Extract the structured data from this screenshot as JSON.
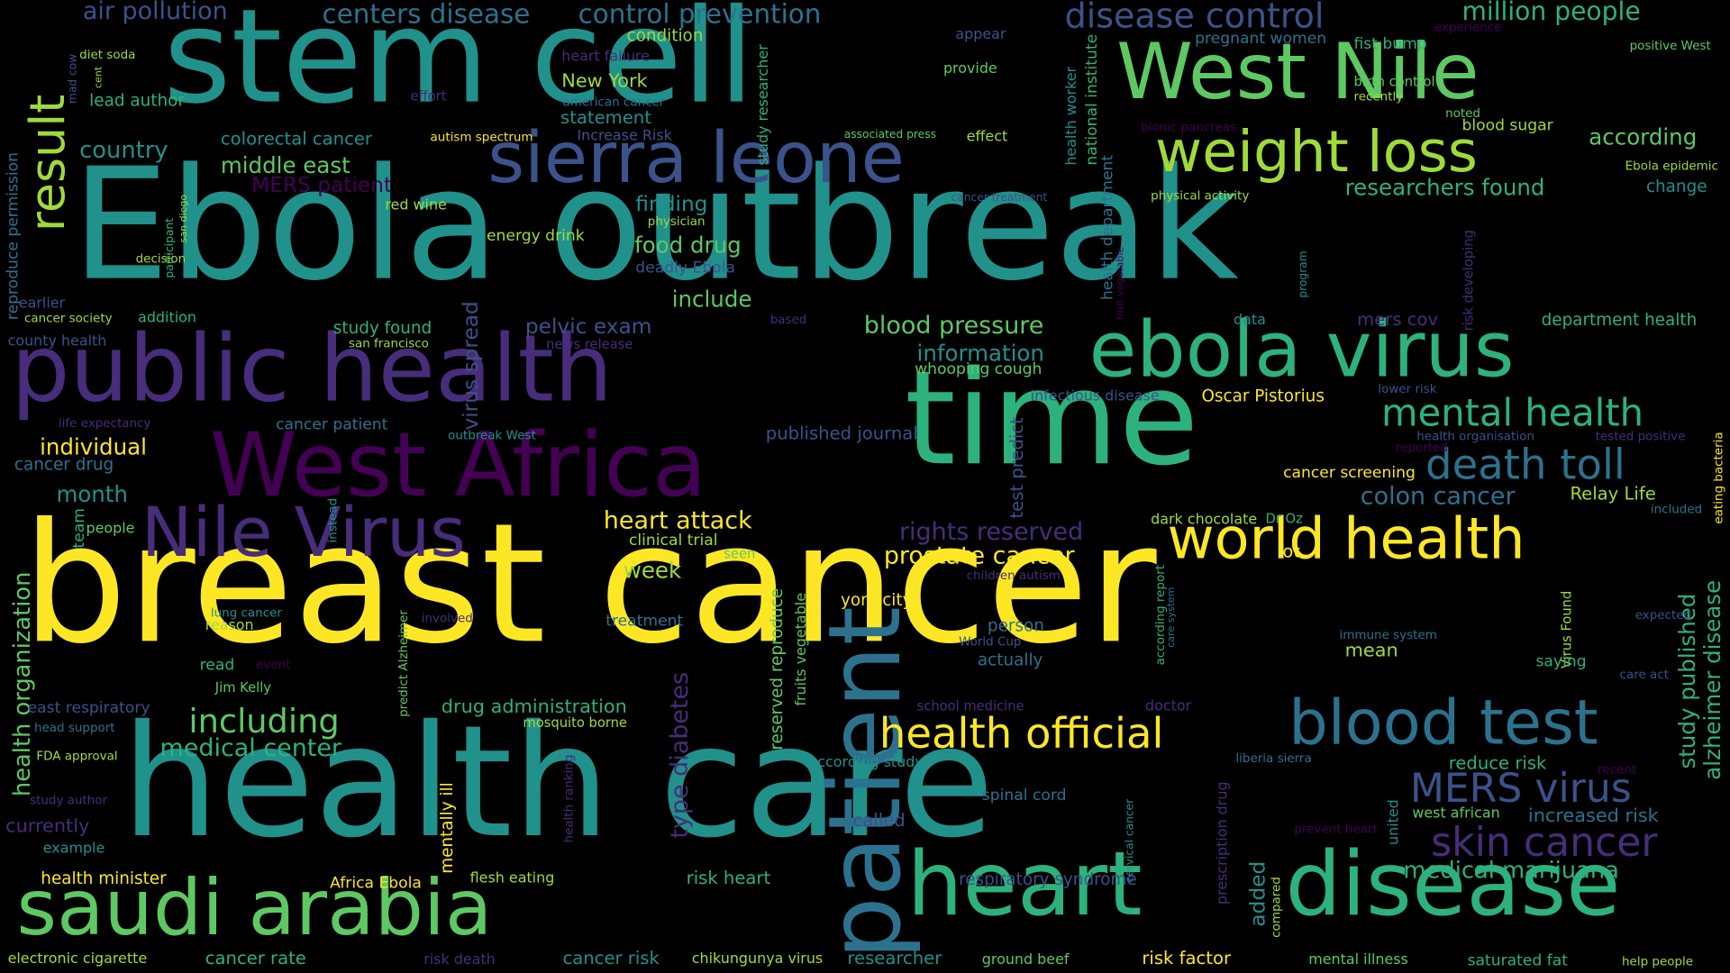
{
  "palette": {
    "background": "#000000",
    "yellow": "#fde725",
    "light_green": "#a0da39",
    "green": "#5ec962",
    "teal_green": "#2db27d",
    "teal": "#21918c",
    "blue_teal": "#2c728e",
    "blue": "#3b528b",
    "indigo": "#472d7b",
    "purple": "#440154"
  },
  "words": [
    "Ebola outbreak",
    "breast cancer",
    "health care",
    "stem cell",
    "public health",
    "time",
    "West Nile",
    "ebola virus",
    "West Africa",
    "patient",
    "heart",
    "disease",
    "saudi arabia",
    "sierra leone",
    "Nile Virus",
    "weight loss",
    "world health",
    "blood test",
    "health official",
    "mental health",
    "death toll",
    "MERS virus",
    "skin cancer",
    "result",
    "air pollution",
    "centers disease",
    "control prevention",
    "disease control",
    "million people",
    "pregnant women",
    "fist bump",
    "experience",
    "positive West",
    "condition",
    "heart failure",
    "diet soda",
    "mad cow",
    "cent",
    "lead author",
    "New York",
    "american cancer",
    "effort",
    "statement",
    "Increase Risk",
    "appear",
    "provide",
    "study researcher",
    "health worker",
    "national institute",
    "birth control",
    "recently",
    "noted",
    "blood sugar",
    "according",
    "bionic pancreas",
    "country",
    "colorectal cancer",
    "autism spectrum",
    "associated press",
    "effect",
    "Ebola epidemic",
    "middle east",
    "MERS patient",
    "researchers found",
    "change",
    "reproduce permission",
    "red wine",
    "physical activity",
    "cancer treatment",
    "finding",
    "physician",
    "san diego",
    "participant",
    "energy drink",
    "food drug",
    "health department",
    "fruit vegetable",
    "program",
    "risk developing",
    "decision",
    "deadly Ebola",
    "include",
    "earlier",
    "addition",
    "cancer society",
    "based",
    "data",
    "mers cov",
    "department health",
    "study found",
    "pelvic exam",
    "blood pressure",
    "county health",
    "san francisco",
    "news release",
    "information",
    "whooping cough",
    "life expectancy",
    "cancer patient",
    "virus spread",
    "infectious disease",
    "Oscar Pistorius",
    "lower risk",
    "outbreak West",
    "published journal",
    "health organisation",
    "tested positive",
    "individual",
    "reported",
    "eating bacteria",
    "cancer drug",
    "test predict",
    "cancer screening",
    "month",
    "colon cancer",
    "Relay Life",
    "team",
    "people",
    "instead",
    "heart attack",
    "Dr Oz",
    "dark chocolate",
    "included",
    "clinical trial",
    "seen",
    "rights reserved",
    "lot",
    "health organization",
    "prostate cancer",
    "week",
    "children autism",
    "study published",
    "alzheimer disease",
    "predict Alzheimer",
    "lung cancer",
    "reason",
    "involved",
    "treatment",
    "york city",
    "reserved reproduce",
    "fruits vegetable",
    "person",
    "World Cup",
    "actually",
    "according report",
    "care system",
    "immune system",
    "mean",
    "expected",
    "Virus Found",
    "saying",
    "read",
    "event",
    "Jim Kelly",
    "type diabetes",
    "care act",
    "east respiratory",
    "drug administration",
    "school medicine",
    "doctor",
    "head support",
    "including",
    "mosquito borne",
    "medical center",
    "FDA approval",
    "according study",
    "liberia sierra",
    "reduce risk",
    "recent",
    "study author",
    "spinal cord",
    "cervical cancer",
    "united",
    "west african",
    "currently",
    "health ranking",
    "called",
    "prevent heart",
    "increased risk",
    "example",
    "mentally ill",
    "prescription drug",
    "health minister",
    "Africa Ebola",
    "flesh eating",
    "risk heart",
    "respiratory syndrome",
    "added",
    "compared",
    "medical marijuana",
    "electronic cigarette",
    "cancer rate",
    "risk death",
    "cancer risk",
    "chikungunya virus",
    "researcher",
    "ground beef",
    "risk factor",
    "mental illness",
    "saturated fat",
    "help people"
  ]
}
